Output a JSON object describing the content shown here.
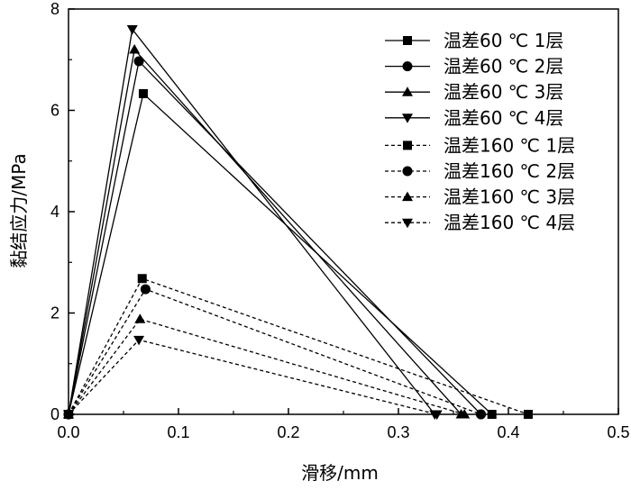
{
  "chart_data": {
    "type": "line",
    "xlabel": "滑移/mm",
    "ylabel": "黏结应力/MPa",
    "xlim": [
      0.0,
      0.5
    ],
    "ylim": [
      0,
      8
    ],
    "xticks": [
      0.0,
      0.1,
      0.2,
      0.3,
      0.4,
      0.5
    ],
    "xtick_labels": [
      "0.0",
      "0.1",
      "0.2",
      "0.3",
      "0.4",
      "0.5"
    ],
    "yticks": [
      0,
      2,
      4,
      6,
      8
    ],
    "ytick_labels": [
      "0",
      "2",
      "4",
      "6",
      "8"
    ],
    "grid": false,
    "legend_position": "top-right",
    "series": [
      {
        "name": "温差60 ℃ 1层",
        "marker": "square",
        "line": "solid",
        "x": [
          0.0,
          0.068,
          0.385
        ],
        "y": [
          0.0,
          6.33,
          0.0
        ]
      },
      {
        "name": "温差60 ℃ 2层",
        "marker": "circle",
        "line": "solid",
        "x": [
          0.0,
          0.064,
          0.375
        ],
        "y": [
          0.0,
          6.97,
          0.0
        ]
      },
      {
        "name": "温差60 ℃ 3层",
        "marker": "triangle-up",
        "line": "solid",
        "x": [
          0.0,
          0.06,
          0.357
        ],
        "y": [
          0.0,
          7.2,
          0.0
        ]
      },
      {
        "name": "温差60 ℃ 4层",
        "marker": "triangle-down",
        "line": "solid",
        "x": [
          0.0,
          0.058,
          0.333
        ],
        "y": [
          0.0,
          7.6,
          0.0
        ]
      },
      {
        "name": "温差160 ℃ 1层",
        "marker": "square",
        "line": "dashed",
        "x": [
          0.0,
          0.067,
          0.418
        ],
        "y": [
          0.0,
          2.68,
          0.0
        ]
      },
      {
        "name": "温差160 ℃ 2层",
        "marker": "circle",
        "line": "dashed",
        "x": [
          0.0,
          0.07,
          0.375
        ],
        "y": [
          0.0,
          2.47,
          0.0
        ]
      },
      {
        "name": "温差160 ℃ 3层",
        "marker": "triangle-up",
        "line": "dashed",
        "x": [
          0.0,
          0.065,
          0.36
        ],
        "y": [
          0.0,
          1.88,
          0.0
        ]
      },
      {
        "name": "温差160 ℃ 4层",
        "marker": "triangle-down",
        "line": "dashed",
        "x": [
          0.0,
          0.064,
          0.335
        ],
        "y": [
          0.0,
          1.47,
          0.0
        ]
      }
    ]
  }
}
